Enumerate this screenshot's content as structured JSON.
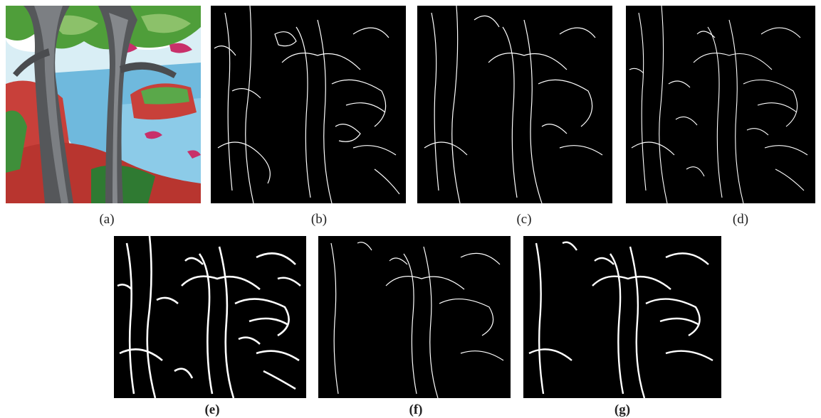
{
  "figure": {
    "panels": [
      {
        "id": "a",
        "label": "(a)",
        "kind": "painting"
      },
      {
        "id": "b",
        "label": "(b)",
        "kind": "edge-map"
      },
      {
        "id": "c",
        "label": "(c)",
        "kind": "edge-map"
      },
      {
        "id": "d",
        "label": "(d)",
        "kind": "edge-map"
      },
      {
        "id": "e",
        "label": "(e)",
        "kind": "edge-map"
      },
      {
        "id": "f",
        "label": "(f)",
        "kind": "edge-map"
      },
      {
        "id": "g",
        "label": "(g)",
        "kind": "edge-map"
      }
    ],
    "colors": {
      "edge_background": "#000000",
      "edge_stroke": "#ffffff",
      "sky": "#d9eef5",
      "water": "#6fb9dd",
      "trunk": "#55575a",
      "foliage": "#4f9e3a",
      "hill_red": "#c8403a",
      "magenta": "#c8306a"
    }
  }
}
